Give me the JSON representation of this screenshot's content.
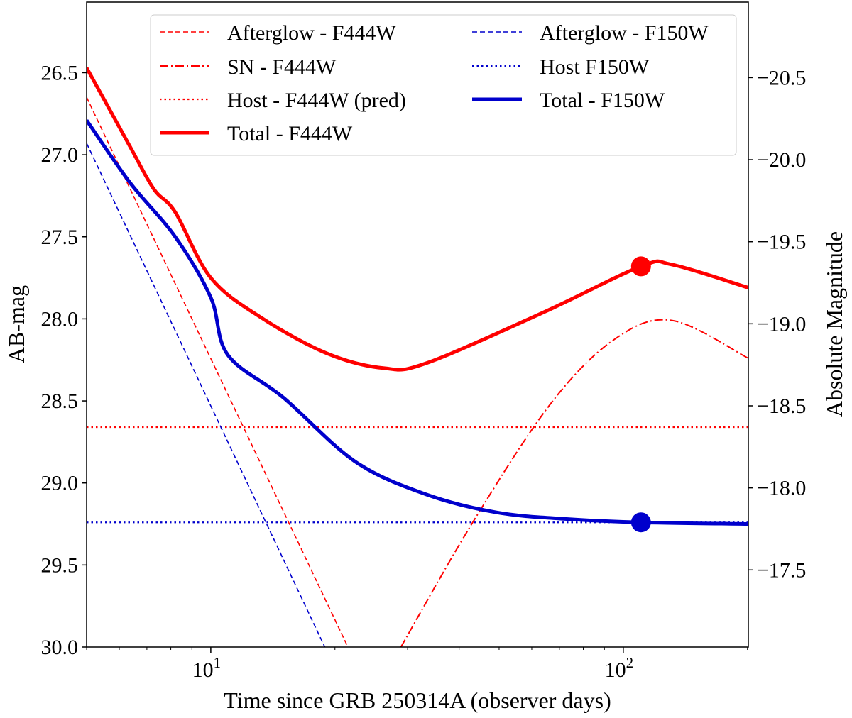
{
  "chart_data": {
    "type": "line",
    "xlabel": "Time since GRB 250314A (observer days)",
    "ylabel": "AB-mag",
    "ylabel_right": "Absolute Magnitude",
    "x_scale": "log",
    "xlim": [
      5,
      201
    ],
    "ylim": [
      30.0,
      26.07
    ],
    "y_inverted": true,
    "x_ticks": [
      {
        "value": 10,
        "base": "10",
        "exp": "1"
      },
      {
        "value": 100,
        "base": "10",
        "exp": "2"
      }
    ],
    "y_ticks": [
      "26.5",
      "27.0",
      "27.5",
      "28.0",
      "28.5",
      "29.0",
      "29.5",
      "30.0"
    ],
    "y_right_ticks": [
      "−20.5",
      "−20.0",
      "−19.5",
      "−19.0",
      "−18.5",
      "−18.0",
      "−17.5"
    ],
    "y_right_tick_values": [
      -20.5,
      -20.0,
      -19.5,
      -19.0,
      -18.5,
      -18.0,
      -17.5
    ],
    "ab_minus_absolute": 47.03,
    "grid": false,
    "legend_placement": "top",
    "series": [
      {
        "name": "Afterglow - F444W",
        "color": "#ff0000",
        "style": "dashed",
        "x": [
          5,
          21.5
        ],
        "y": [
          26.65,
          30.0
        ]
      },
      {
        "name": "SN - F444W",
        "color": "#ff0000",
        "style": "dashdot",
        "x": [
          28.9,
          43.4,
          67.0,
          95.8,
          131.5,
          201
        ],
        "y": [
          30.0,
          29.23,
          28.51,
          28.12,
          28.01,
          28.24
        ]
      },
      {
        "name": "Host - F444W (pred)",
        "color": "#ff0000",
        "style": "dotted",
        "x": [
          5,
          201
        ],
        "y": [
          28.66,
          28.66
        ]
      },
      {
        "name": "Total - F444W",
        "color": "#ff0000",
        "style": "solid",
        "x": [
          5,
          6.37,
          7.28,
          8.2,
          10.0,
          13.2,
          19.1,
          26.2,
          33.3,
          64.1,
          110.4,
          131.5,
          201
        ],
        "y": [
          26.47,
          26.95,
          27.21,
          27.35,
          27.75,
          27.99,
          28.21,
          28.3,
          28.27,
          27.96,
          27.68,
          27.67,
          27.81
        ]
      },
      {
        "name": "Afterglow - F150W",
        "color": "#0000cc",
        "style": "dashed",
        "x": [
          5,
          18.9
        ],
        "y": [
          26.93,
          30.0
        ]
      },
      {
        "name": "Host F150W",
        "color": "#0000cc",
        "style": "dotted",
        "x": [
          5,
          201
        ],
        "y": [
          29.24,
          29.24
        ]
      },
      {
        "name": "Total - F150W",
        "color": "#0000cc",
        "style": "solid",
        "x": [
          5,
          6.37,
          8.2,
          10.0,
          11.0,
          15.0,
          22.4,
          33.3,
          49.4,
          73.4,
          110.4,
          201
        ],
        "y": [
          26.79,
          27.17,
          27.5,
          27.87,
          28.22,
          28.48,
          28.87,
          29.07,
          29.18,
          29.22,
          29.24,
          29.25
        ]
      }
    ],
    "markers": [
      {
        "x": 110.4,
        "y": 27.68,
        "color": "#ff0000"
      },
      {
        "x": 110.4,
        "y": 29.24,
        "color": "#0000cc"
      }
    ]
  }
}
